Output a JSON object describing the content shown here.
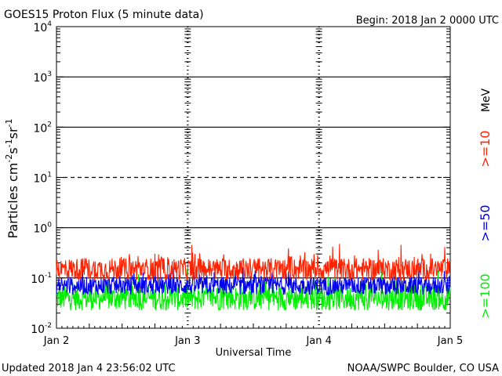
{
  "chart_data": {
    "type": "line",
    "title": "GOES15 Proton Flux (5 minute data)",
    "begin_label": "Begin: 2018 Jan 2 0000 UTC",
    "xlabel": "Universal Time",
    "ylabel": {
      "base": "Particles cm",
      "sup1": "-2",
      "mid1": "s",
      "sup2": "-1",
      "mid2": "sr",
      "sup3": "-1"
    },
    "y_scale": "log",
    "ylim": [
      0.01,
      10000
    ],
    "y_ticks": [
      {
        "value": 10000,
        "base": "10",
        "exp": "4"
      },
      {
        "value": 1000,
        "base": "10",
        "exp": "3"
      },
      {
        "value": 100,
        "base": "10",
        "exp": "2"
      },
      {
        "value": 10,
        "base": "10",
        "exp": "1"
      },
      {
        "value": 1,
        "base": "10",
        "exp": "0"
      },
      {
        "value": 0.1,
        "base": "10",
        "exp": "-1"
      },
      {
        "value": 0.01,
        "base": "10",
        "exp": "-2"
      }
    ],
    "x_ticks": [
      "Jan 2",
      "Jan 3",
      "Jan 4",
      "Jan 5"
    ],
    "xlim_days": [
      0,
      3
    ],
    "reference_lines": [
      {
        "value": 1000,
        "style": "solid"
      },
      {
        "value": 100,
        "style": "solid"
      },
      {
        "value": 10,
        "style": "dashed"
      },
      {
        "value": 1,
        "style": "solid"
      },
      {
        "value": 0.1,
        "style": "solid"
      }
    ],
    "series": [
      {
        "name": ">=10 MeV",
        "color": "#ff2200",
        "baseline": 0.15,
        "spread": 0.22
      },
      {
        "name": ">=50",
        "color": "#0000ee",
        "baseline": 0.07,
        "spread": 0.18
      },
      {
        "name": ">=100",
        "color": "#00ee00",
        "baseline": 0.04,
        "spread": 0.25
      }
    ],
    "legend": {
      "unit": "MeV",
      "labels": [
        ">=10",
        ">=50",
        ">=100"
      ],
      "colors": [
        "#ff2200",
        "#0000ee",
        "#00ee00"
      ]
    }
  },
  "footer": {
    "updated": "Updated 2018 Jan  4 23:56:02 UTC",
    "source": "NOAA/SWPC Boulder, CO USA"
  }
}
